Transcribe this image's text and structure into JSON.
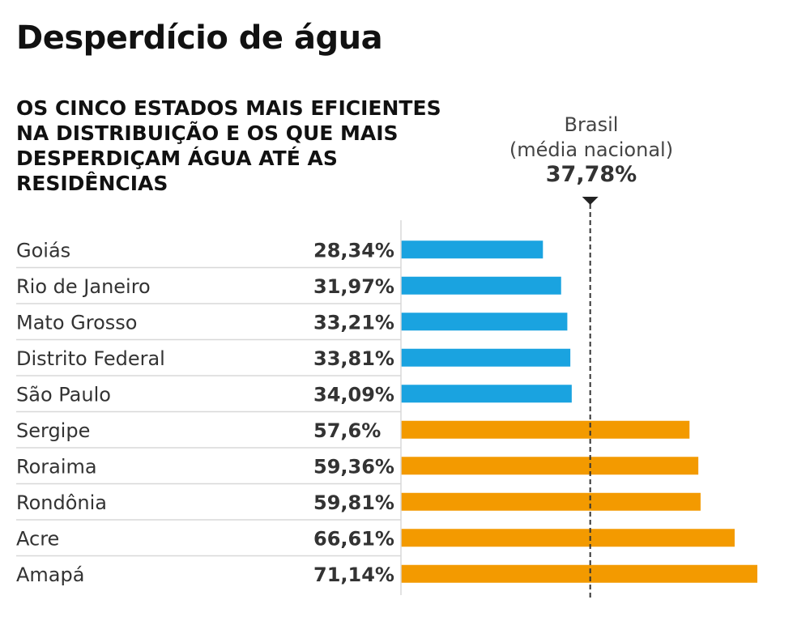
{
  "title": "Desperdício de água",
  "subtitle": "OS CINCO ESTADOS MAIS EFICIENTES NA DISTRIBUIÇÃO E OS QUE MAIS DESPERDIÇAM ÁGUA ATÉ AS RESIDÊNCIAS",
  "chart_data": {
    "type": "bar",
    "orientation": "horizontal",
    "categories": [
      "Goiás",
      "Rio de Janeiro",
      "Mato Grosso",
      "Distrito Federal",
      "São Paulo",
      "Sergipe",
      "Roraima",
      "Rondônia",
      "Acre",
      "Amapá"
    ],
    "values": [
      28.34,
      31.97,
      33.21,
      33.81,
      34.09,
      57.6,
      59.36,
      59.81,
      66.61,
      71.14
    ],
    "value_labels": [
      "28,34%",
      "31,97%",
      "33,21%",
      "33,81%",
      "34,09%",
      "57,6%",
      "59,36%",
      "59,81%",
      "66,61%",
      "71,14%"
    ],
    "groups": [
      "eficientes",
      "eficientes",
      "eficientes",
      "eficientes",
      "eficientes",
      "desperdicam",
      "desperdicam",
      "desperdicam",
      "desperdicam",
      "desperdicam"
    ],
    "colors": {
      "eficientes": "#1aa3e0",
      "desperdicam": "#f39a00"
    },
    "xlim": [
      0,
      71.14
    ],
    "reference": {
      "value": 37.78,
      "label_line1": "Brasil",
      "label_line2": "(média nacional)",
      "value_label": "37,78%"
    },
    "grid": false,
    "legend": "none"
  }
}
